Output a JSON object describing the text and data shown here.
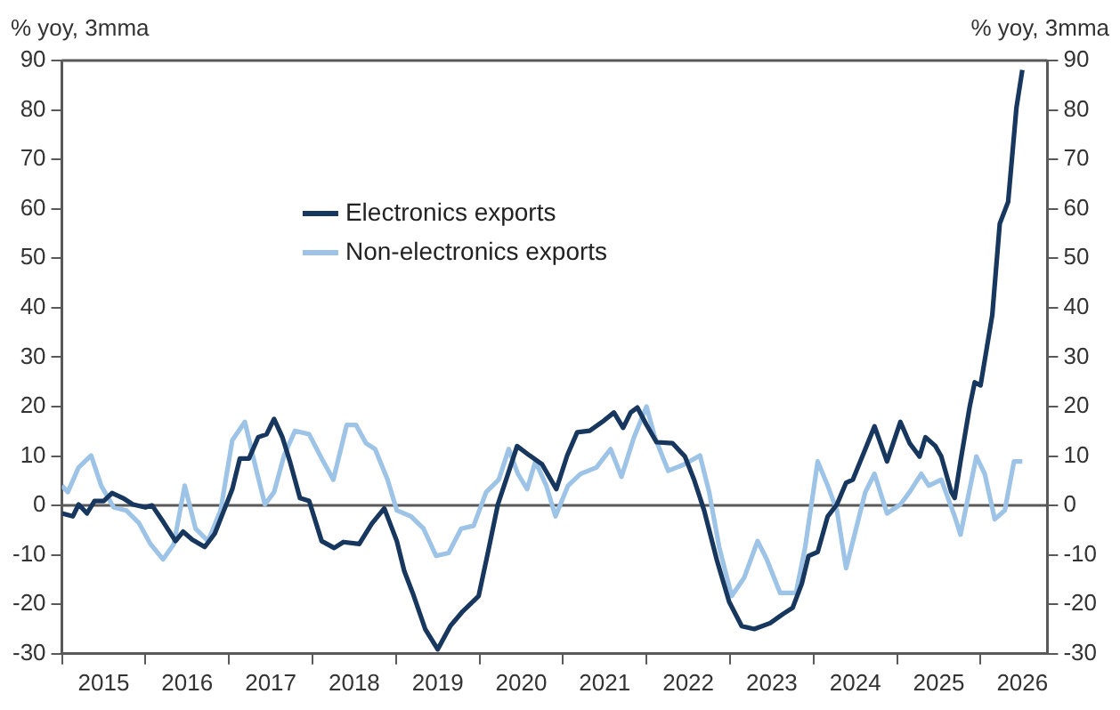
{
  "chart_data": {
    "type": "line",
    "ylabel": "% yoy, 3mma",
    "y2label": "% yoy, 3mma",
    "xlim": [
      2015,
      2026.8
    ],
    "xticks": [
      {
        "value": 2015,
        "label": null
      },
      {
        "value": 2015.5,
        "label": "2015"
      },
      {
        "value": 2016,
        "label": null
      },
      {
        "value": 2016.5,
        "label": "2016"
      },
      {
        "value": 2017,
        "label": null
      },
      {
        "value": 2017.5,
        "label": "2017"
      },
      {
        "value": 2018,
        "label": null
      },
      {
        "value": 2018.5,
        "label": "2018"
      },
      {
        "value": 2019,
        "label": null
      },
      {
        "value": 2019.5,
        "label": "2019"
      },
      {
        "value": 2020,
        "label": null
      },
      {
        "value": 2020.5,
        "label": "2020"
      },
      {
        "value": 2021,
        "label": null
      },
      {
        "value": 2021.5,
        "label": "2021"
      },
      {
        "value": 2022,
        "label": null
      },
      {
        "value": 2022.5,
        "label": "2022"
      },
      {
        "value": 2023,
        "label": null
      },
      {
        "value": 2023.5,
        "label": "2023"
      },
      {
        "value": 2024,
        "label": null
      },
      {
        "value": 2024.5,
        "label": "2024"
      },
      {
        "value": 2025,
        "label": null
      },
      {
        "value": 2025.5,
        "label": "2025"
      },
      {
        "value": 2026,
        "label": null
      },
      {
        "value": 2026.5,
        "label": "2026"
      }
    ],
    "ylim": [
      -30,
      90
    ],
    "yticks": [
      -30,
      -20,
      -10,
      0,
      10,
      20,
      30,
      40,
      50,
      60,
      70,
      80,
      90
    ],
    "y2lim": [
      -30,
      90
    ],
    "y2ticks": [
      -30,
      -20,
      -10,
      0,
      10,
      20,
      30,
      40,
      50,
      60,
      70,
      80,
      90
    ],
    "grid": false,
    "legend": "top",
    "marker": "none",
    "line_style": "solid",
    "ref_lines": [
      {
        "axis": "y",
        "value": 0,
        "color": "#595959"
      }
    ],
    "series": [
      {
        "name": "Electronics exports",
        "color": "#17375e",
        "x": [
          2015.0,
          2015.13,
          2015.2,
          2015.3,
          2015.39,
          2015.5,
          2015.6,
          2015.73,
          2015.85,
          2016.0,
          2016.08,
          2016.22,
          2016.36,
          2016.45,
          2016.56,
          2016.71,
          2016.83,
          2016.94,
          2017.04,
          2017.13,
          2017.24,
          2017.35,
          2017.45,
          2017.54,
          2017.64,
          2017.73,
          2017.85,
          2017.96,
          2018.11,
          2018.26,
          2018.37,
          2018.56,
          2018.71,
          2018.86,
          2019.01,
          2019.1,
          2019.2,
          2019.35,
          2019.5,
          2019.65,
          2019.8,
          2019.99,
          2020.1,
          2020.22,
          2020.33,
          2020.45,
          2020.6,
          2020.75,
          2020.92,
          2021.05,
          2021.17,
          2021.32,
          2021.47,
          2021.61,
          2021.72,
          2021.81,
          2021.89,
          2022.0,
          2022.12,
          2022.31,
          2022.46,
          2022.57,
          2022.69,
          2022.84,
          2022.99,
          2023.14,
          2023.29,
          2023.48,
          2023.63,
          2023.75,
          2023.86,
          2023.94,
          2024.05,
          2024.17,
          2024.28,
          2024.39,
          2024.47,
          2024.62,
          2024.73,
          2024.88,
          2025.04,
          2025.15,
          2025.27,
          2025.34,
          2025.46,
          2025.53,
          2025.65,
          2025.69,
          2025.76,
          2025.87,
          2025.93,
          2026.0,
          2026.14,
          2026.23,
          2026.33,
          2026.43,
          2026.5
        ],
        "values": [
          -1.6,
          -2.2,
          0.2,
          -1.6,
          0.9,
          0.9,
          2.5,
          1.5,
          0.2,
          -0.4,
          0,
          -3.5,
          -7.2,
          -5.3,
          -6.9,
          -8.4,
          -5.7,
          -1,
          3.3,
          9.5,
          9.5,
          13.8,
          14.4,
          17.5,
          13.8,
          8.9,
          1.5,
          0.9,
          -7.2,
          -8.6,
          -7.4,
          -7.8,
          -3.7,
          -0.6,
          -7.2,
          -13.3,
          -17.7,
          -25,
          -29.1,
          -24.4,
          -21.4,
          -18.3,
          -9.6,
          0.2,
          5.8,
          12,
          10.1,
          8.3,
          3.3,
          10.1,
          14.8,
          15.1,
          16.9,
          18.8,
          15.7,
          18.8,
          19.8,
          16.3,
          12.8,
          12.6,
          9.9,
          5.2,
          -1,
          -10.9,
          -19.5,
          -24.4,
          -25,
          -23.8,
          -22,
          -20.7,
          -15.8,
          -10.2,
          -9.4,
          -2.2,
          0.2,
          4.6,
          5.2,
          11.4,
          16,
          8.9,
          16.9,
          12.6,
          9.9,
          13.8,
          12,
          9.9,
          2.7,
          1.5,
          8.9,
          20,
          24.9,
          24.3,
          38.5,
          57,
          61.4,
          80.5,
          88.1
        ]
      },
      {
        "name": "Non-electronics exports",
        "color": "#9dc3e6",
        "x": [
          2015.0,
          2015.07,
          2015.2,
          2015.35,
          2015.47,
          2015.62,
          2015.77,
          2015.92,
          2016.06,
          2016.21,
          2016.34,
          2016.47,
          2016.6,
          2016.75,
          2016.9,
          2017.04,
          2017.19,
          2017.32,
          2017.43,
          2017.54,
          2017.66,
          2017.79,
          2017.96,
          2018.11,
          2018.25,
          2018.41,
          2018.52,
          2018.64,
          2018.75,
          2018.9,
          2019.01,
          2019.18,
          2019.33,
          2019.48,
          2019.63,
          2019.78,
          2019.93,
          2020.08,
          2020.23,
          2020.35,
          2020.46,
          2020.57,
          2020.67,
          2020.8,
          2020.91,
          2021.06,
          2021.21,
          2021.4,
          2021.57,
          2021.7,
          2021.85,
          2022.0,
          2022.1,
          2022.26,
          2022.45,
          2022.64,
          2022.75,
          2022.87,
          2023.02,
          2023.17,
          2023.33,
          2023.44,
          2023.6,
          2023.79,
          2023.9,
          2024.05,
          2024.17,
          2024.28,
          2024.39,
          2024.5,
          2024.62,
          2024.73,
          2024.88,
          2025.04,
          2025.15,
          2025.29,
          2025.38,
          2025.53,
          2025.69,
          2025.76,
          2025.87,
          2025.95,
          2026.05,
          2026.17,
          2026.29,
          2026.4,
          2026.5
        ],
        "values": [
          4,
          2.7,
          7.7,
          10.1,
          4,
          -0.4,
          -1,
          -3.5,
          -7.8,
          -10.9,
          -7.8,
          4,
          -4.7,
          -7.2,
          -1,
          13.2,
          16.9,
          7.7,
          0.2,
          2.7,
          10.1,
          15.1,
          14.4,
          9.5,
          5.2,
          16.3,
          16.3,
          12.6,
          11.4,
          5.2,
          -1,
          -2.2,
          -4.7,
          -10.2,
          -9.6,
          -4.7,
          -4.1,
          2.7,
          5.2,
          11.4,
          6.4,
          3.3,
          8.9,
          4,
          -2.2,
          4,
          6.4,
          7.7,
          11.4,
          5.8,
          13.8,
          20,
          13.8,
          7,
          8.3,
          10.1,
          2.7,
          -8.4,
          -18.3,
          -14.6,
          -7.2,
          -10.9,
          -17.7,
          -17.7,
          -8.4,
          8.9,
          4,
          -1,
          -12.7,
          -5.3,
          2.7,
          6.4,
          -1.6,
          0.2,
          2.7,
          6.4,
          4,
          5.2,
          -2.2,
          -5.9,
          3.3,
          9.9,
          6.4,
          -2.8,
          -1,
          8.9,
          8.9
        ]
      }
    ]
  }
}
